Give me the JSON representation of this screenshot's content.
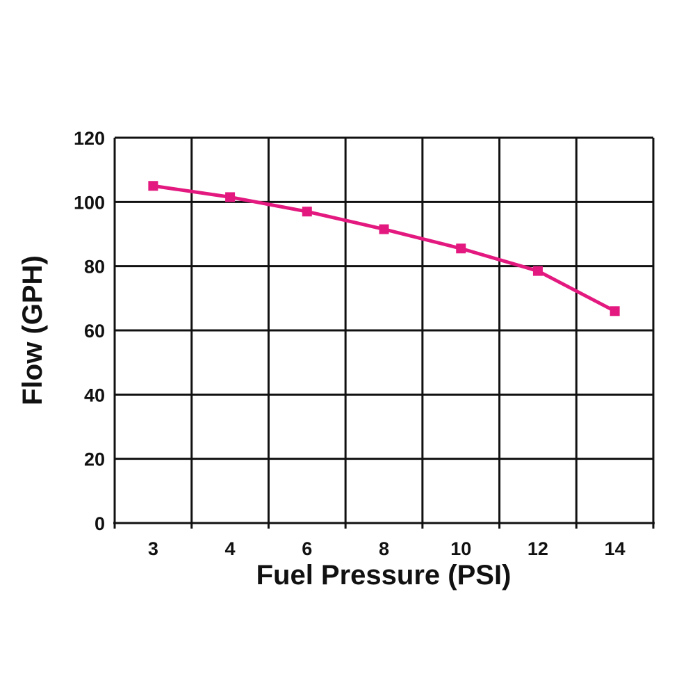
{
  "chart_data": {
    "type": "line",
    "xlabel": "Fuel Pressure (PSI)",
    "ylabel": "Flow (GPH)",
    "categories": [
      "3",
      "4",
      "6",
      "8",
      "10",
      "12",
      "14"
    ],
    "series": [
      {
        "values": [
          105,
          101.5,
          97,
          91.5,
          85.5,
          78.5,
          66
        ],
        "color": "#e3197f",
        "marker": "square"
      }
    ],
    "ylim": [
      0,
      120
    ],
    "yticks": [
      0,
      20,
      40,
      60,
      80,
      100,
      120
    ],
    "grid": true,
    "legend": "none"
  }
}
